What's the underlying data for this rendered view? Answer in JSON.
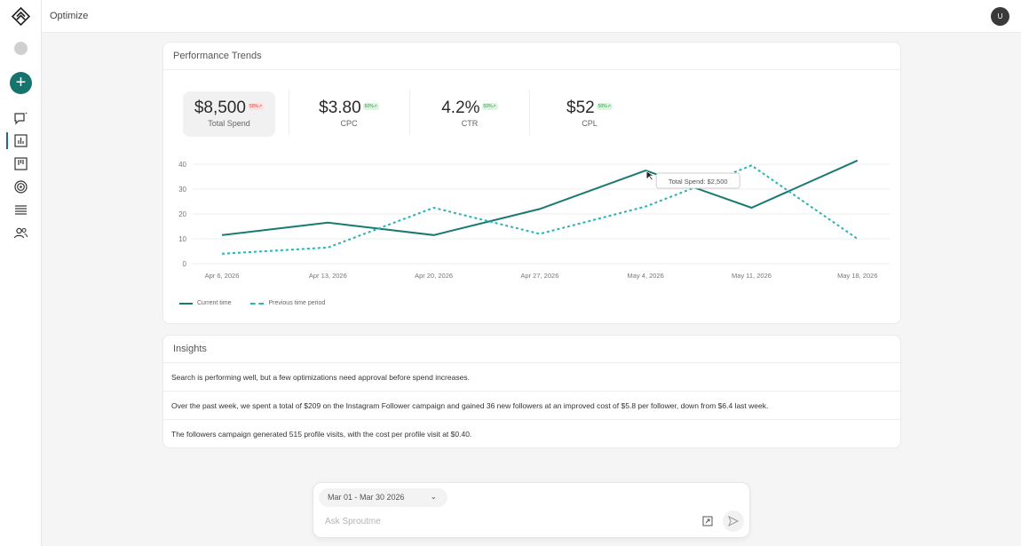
{
  "header": {
    "title": "Optimize",
    "avatar_initial": "U"
  },
  "sidebar": {
    "items": [
      {
        "name": "chat-icon"
      },
      {
        "name": "chart-icon",
        "active": true
      },
      {
        "name": "board-icon"
      },
      {
        "name": "target-icon"
      },
      {
        "name": "list-icon"
      },
      {
        "name": "users-icon"
      }
    ]
  },
  "performance": {
    "title": "Performance Trends",
    "kpis": [
      {
        "value": "$8,500",
        "badge": "50%↗",
        "badge_color": "red",
        "label": "Total Spend"
      },
      {
        "value": "$3.80",
        "badge": "50%↗",
        "badge_color": "green",
        "label": "CPC"
      },
      {
        "value": "4.2%",
        "badge": "50%↗",
        "badge_color": "green",
        "label": "CTR"
      },
      {
        "value": "$52",
        "badge": "50%↗",
        "badge_color": "green",
        "label": "CPL"
      }
    ],
    "tooltip": "Total Spend: $2,500",
    "legend": {
      "current": "Current time",
      "previous": "Previous time period"
    }
  },
  "chart_data": {
    "type": "line",
    "x": [
      "Apr 6, 2026",
      "Apr 13, 2026",
      "Apr 20, 2026",
      "Apr 27, 2026",
      "May 4, 2026",
      "May 11, 2026",
      "May 18, 2026"
    ],
    "y_ticks": [
      0,
      10,
      20,
      30,
      40
    ],
    "ylim": [
      0,
      40
    ],
    "grid": true,
    "legend_position": "bottom-left",
    "series": [
      {
        "name": "Current time",
        "style": "solid",
        "color": "#1a7a72",
        "points": [
          [
            "Apr 6, 2026",
            11.5
          ],
          [
            "Apr 13, 2026",
            16.5
          ],
          [
            "Apr 20, 2026",
            11.5
          ],
          [
            "Apr 27, 2026",
            22
          ],
          [
            "May 4, 2026",
            37.5
          ],
          [
            "May 11, 2026",
            22.5
          ],
          [
            "May 18, 2026",
            41.5
          ]
        ]
      },
      {
        "name": "Previous time period",
        "style": "dashed",
        "color": "#2bb3b3",
        "points": [
          [
            "Apr 6, 2026",
            4
          ],
          [
            "Apr 13, 2026",
            6.5
          ],
          [
            "Apr 20, 2026",
            22.5
          ],
          [
            "Apr 27, 2026",
            12
          ],
          [
            "May 4, 2026",
            23
          ],
          [
            "May 11, 2026",
            39.5
          ],
          [
            "May 18, 2026",
            10
          ]
        ]
      }
    ]
  },
  "insights": {
    "title": "Insights",
    "items": [
      "Search is performing well, but a few optimizations need approval before spend increases.",
      "Over the past week, we spent a total of $209 on the Instagram Follower campaign and gained 36 new followers at an improved cost of $5.8 per follower, down from $6.4 last week.",
      "The followers campaign generated 515 profile visits, with the cost per profile visit at $0.40."
    ]
  },
  "ask": {
    "date_range": "Mar 01 - Mar 30 2026",
    "placeholder": "Ask Sproutme"
  },
  "colors": {
    "accent": "#17736d",
    "current_line": "#1a7a72",
    "previous_line": "#2bb3b3"
  }
}
